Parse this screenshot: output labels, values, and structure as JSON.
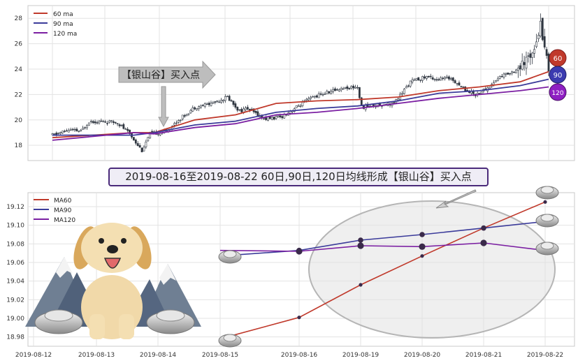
{
  "banner": "2019-08-16至2019-08-22 60日,90日,120日均线形成【银山谷】买入点",
  "colors": {
    "ma60": "#c0392b",
    "ma90": "#3b3b9a",
    "ma120": "#7b1fa2",
    "candle": "#2f3640"
  },
  "chart_data": [
    {
      "type": "candlestick",
      "legend": [
        "60 ma",
        "90 ma",
        "120 ma"
      ],
      "legend_position": "top-left",
      "ylim": [
        16.8,
        29
      ],
      "yticks": [
        18,
        20,
        22,
        24,
        26,
        28
      ],
      "grid": true,
      "annotation": "【银山谷】买入点",
      "badges": [
        "60",
        "90",
        "120"
      ],
      "price_segments": [
        [
          0,
          18.8
        ],
        [
          8,
          19.2
        ],
        [
          14,
          19.1
        ],
        [
          18,
          19.9
        ],
        [
          32,
          19.8
        ],
        [
          38,
          18.9
        ],
        [
          44,
          17.6
        ],
        [
          48,
          18.9
        ],
        [
          56,
          19.1
        ],
        [
          62,
          20.0
        ],
        [
          70,
          21.0
        ],
        [
          78,
          21.3
        ],
        [
          86,
          21.8
        ],
        [
          92,
          20.7
        ],
        [
          96,
          20.9
        ],
        [
          104,
          20.1
        ],
        [
          112,
          20.2
        ],
        [
          120,
          21.0
        ],
        [
          128,
          21.8
        ],
        [
          136,
          22.2
        ],
        [
          142,
          22.5
        ],
        [
          150,
          22.6
        ],
        [
          152,
          21.0
        ],
        [
          160,
          21.2
        ],
        [
          168,
          21.3
        ],
        [
          176,
          23.0
        ],
        [
          184,
          23.4
        ],
        [
          190,
          23.2
        ],
        [
          196,
          23.3
        ],
        [
          202,
          22.5
        ],
        [
          208,
          22.0
        ],
        [
          214,
          22.5
        ],
        [
          220,
          23.4
        ],
        [
          226,
          23.8
        ],
        [
          232,
          24.3
        ],
        [
          236,
          25.5
        ],
        [
          240,
          27.5
        ],
        [
          242,
          26.0
        ],
        [
          244,
          23.8
        ]
      ],
      "ma60": [
        [
          0,
          18.6
        ],
        [
          40,
          19.0
        ],
        [
          50,
          19.0
        ],
        [
          70,
          20.0
        ],
        [
          90,
          20.4
        ],
        [
          110,
          21.3
        ],
        [
          130,
          21.5
        ],
        [
          150,
          21.6
        ],
        [
          170,
          21.8
        ],
        [
          190,
          22.3
        ],
        [
          210,
          22.6
        ],
        [
          230,
          23.0
        ],
        [
          244,
          23.8
        ]
      ],
      "ma90": [
        [
          0,
          18.8
        ],
        [
          40,
          18.8
        ],
        [
          50,
          19.0
        ],
        [
          70,
          19.6
        ],
        [
          90,
          19.9
        ],
        [
          110,
          20.6
        ],
        [
          130,
          20.9
        ],
        [
          150,
          21.1
        ],
        [
          170,
          21.5
        ],
        [
          190,
          22.1
        ],
        [
          210,
          22.3
        ],
        [
          230,
          22.7
        ],
        [
          244,
          23.2
        ]
      ],
      "ma120": [
        [
          0,
          18.4
        ],
        [
          40,
          19.0
        ],
        [
          50,
          18.9
        ],
        [
          70,
          19.4
        ],
        [
          90,
          19.7
        ],
        [
          110,
          20.4
        ],
        [
          130,
          20.6
        ],
        [
          150,
          20.9
        ],
        [
          170,
          21.3
        ],
        [
          190,
          21.7
        ],
        [
          210,
          22.0
        ],
        [
          230,
          22.3
        ],
        [
          244,
          22.6
        ]
      ]
    },
    {
      "type": "line",
      "categories": [
        "2019-08-12",
        "2019-08-13",
        "2019-08-14",
        "2019-08-15",
        "2019-08-16",
        "2019-08-19",
        "2019-08-20",
        "2019-08-21",
        "2019-08-22"
      ],
      "ylim": [
        18.97,
        19.135
      ],
      "yticks": [
        18.98,
        19.0,
        19.02,
        19.04,
        19.06,
        19.08,
        19.1,
        19.12
      ],
      "grid": true,
      "legend_position": "top-left",
      "series": [
        {
          "name": "MA60",
          "x": [
            "2019-08-15",
            "2019-08-16",
            "2019-08-19",
            "2019-08-20",
            "2019-08-21",
            "2019-08-22"
          ],
          "values": [
            18.978,
            19.001,
            19.036,
            19.067,
            19.097,
            19.125
          ]
        },
        {
          "name": "MA90",
          "x": [
            "2019-08-15",
            "2019-08-16",
            "2019-08-19",
            "2019-08-20",
            "2019-08-21",
            "2019-08-22"
          ],
          "values": [
            19.067,
            19.073,
            19.084,
            19.09,
            19.097,
            19.104
          ]
        },
        {
          "name": "MA120",
          "x": [
            "2019-08-15",
            "2019-08-16",
            "2019-08-19",
            "2019-08-20",
            "2019-08-21",
            "2019-08-22"
          ],
          "values": [
            19.073,
            19.072,
            19.078,
            19.077,
            19.081,
            19.073
          ]
        }
      ]
    }
  ]
}
